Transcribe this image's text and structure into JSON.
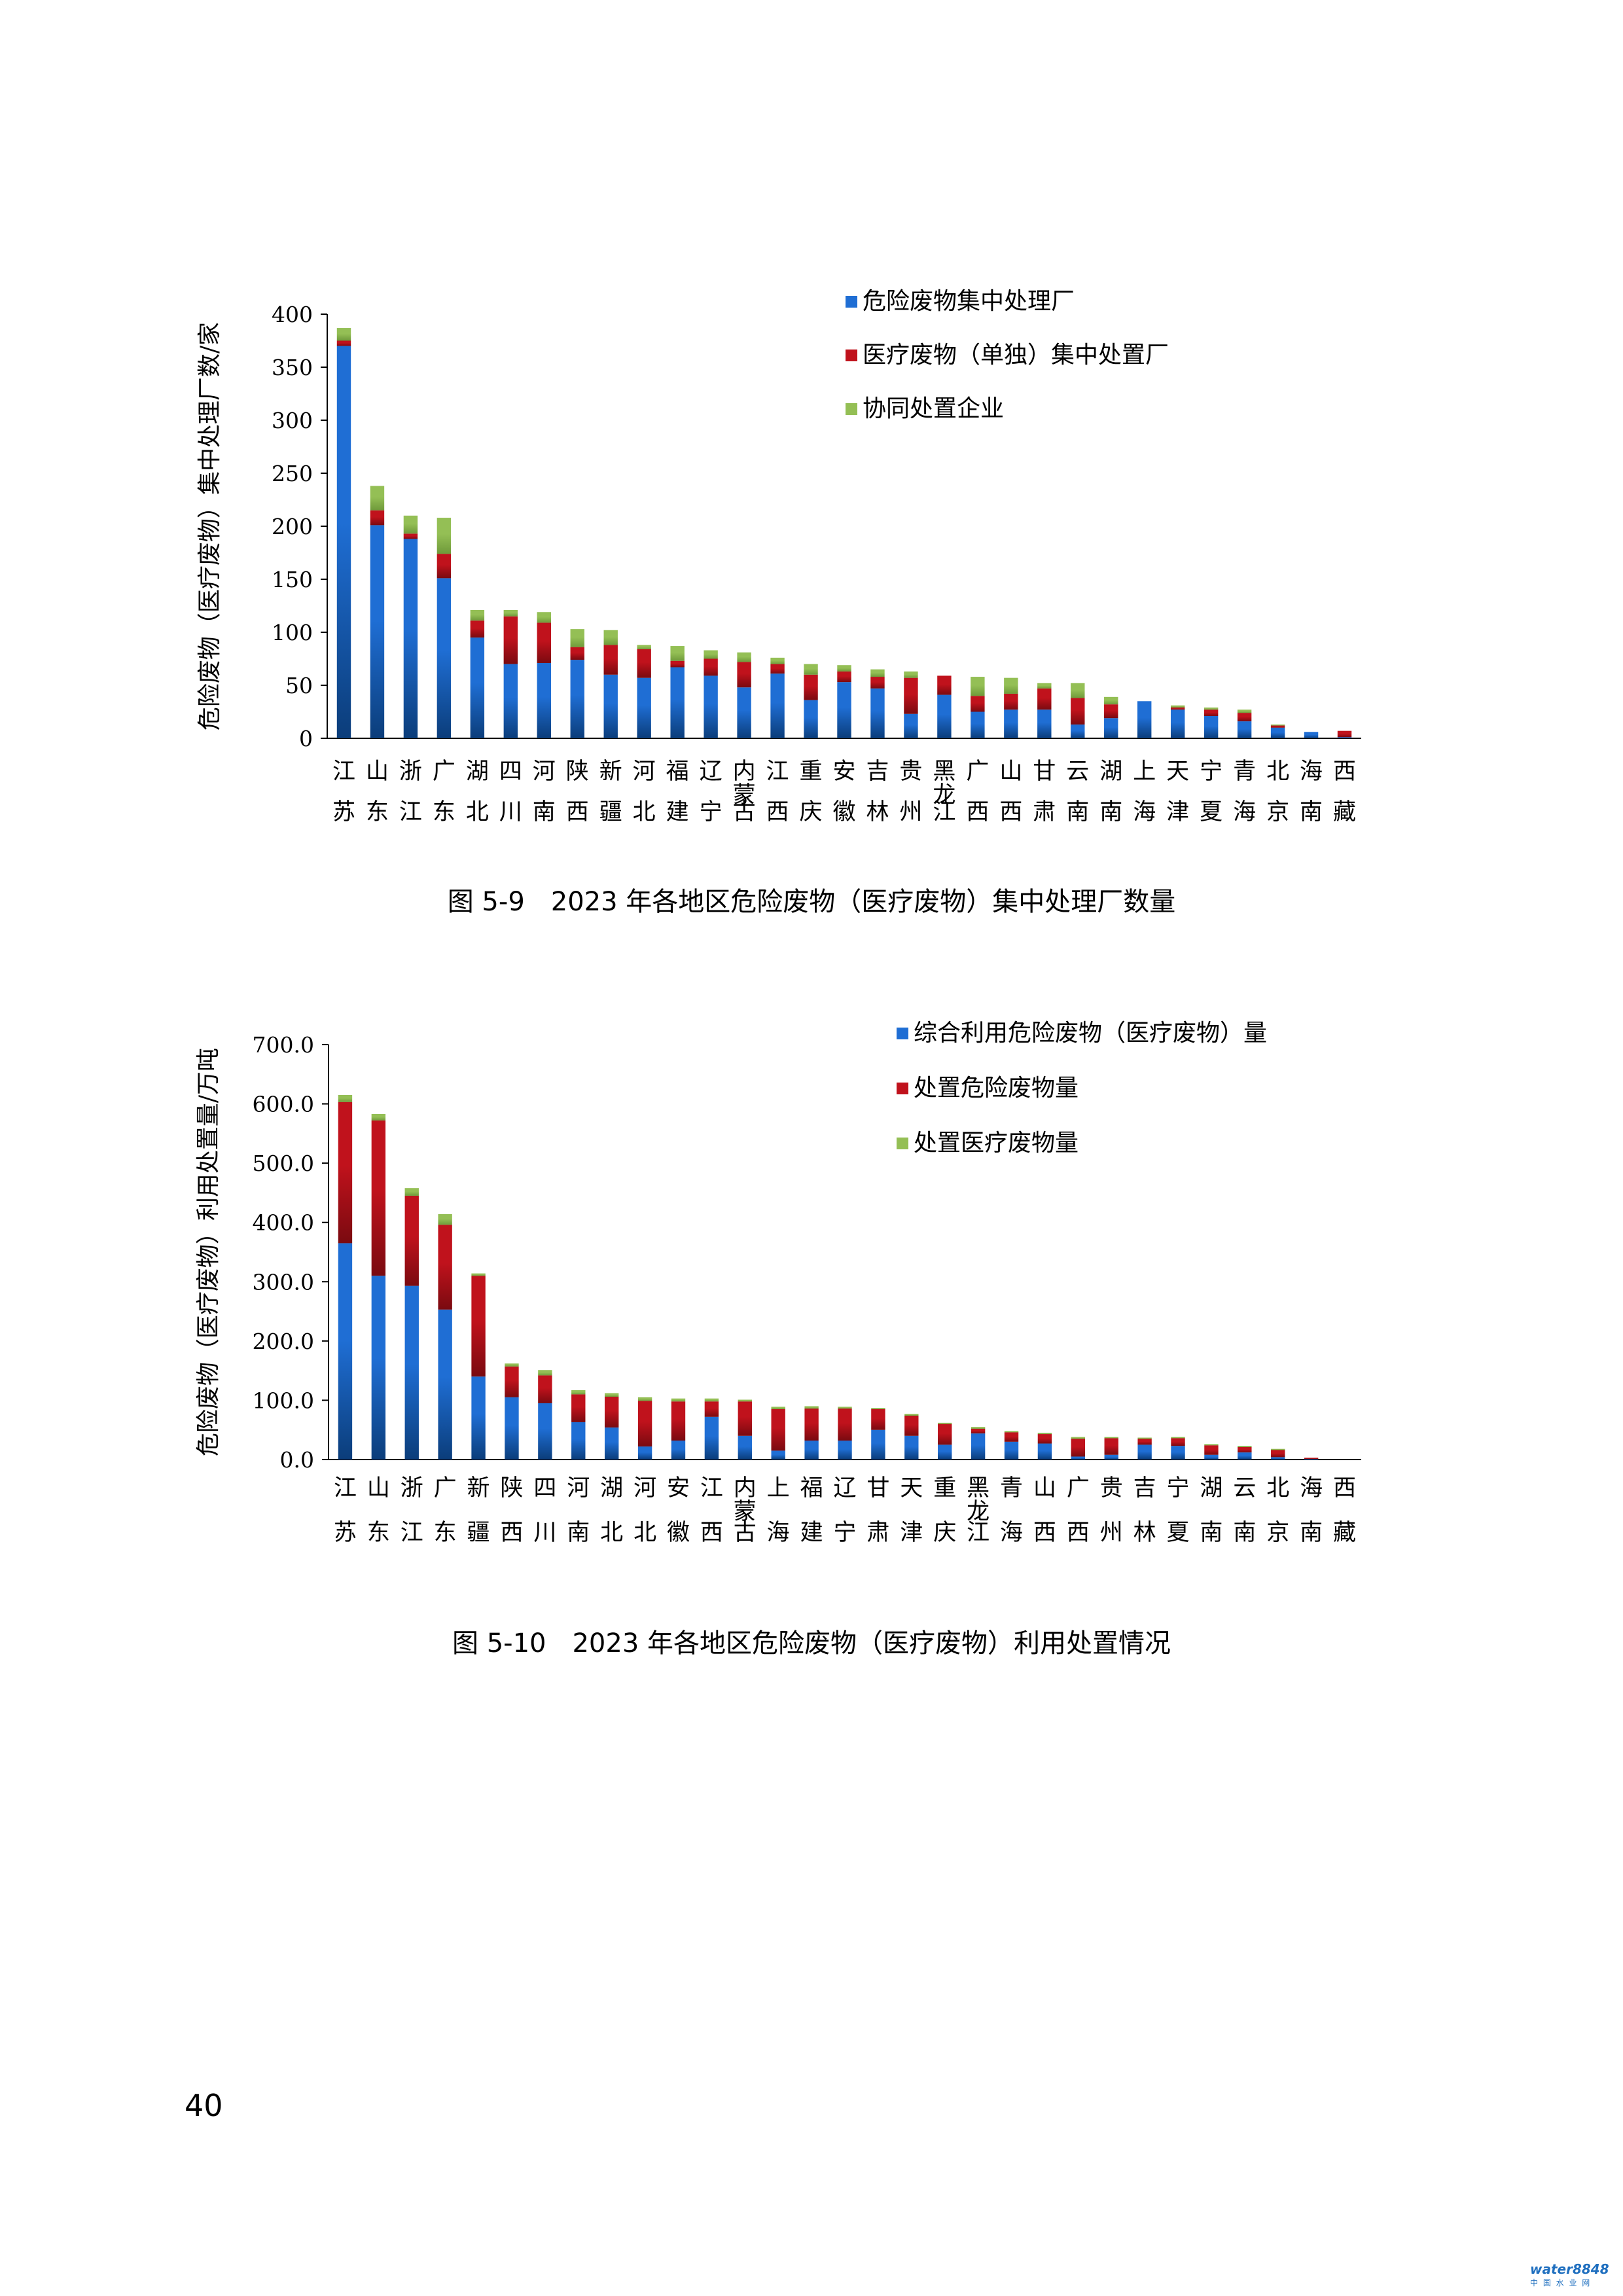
{
  "page": {
    "number": "40",
    "watermark": "water8848",
    "watermark_sub": "中 国 水 业 网"
  },
  "figures": [
    {
      "caption": "图 5-9　2023 年各地区危险废物（医疗废物）集中处理厂数量"
    },
    {
      "caption": "图 5-10　2023 年各地区危险废物（医疗废物）利用处置情况"
    }
  ],
  "chart_data": [
    {
      "type": "bar",
      "stacked": true,
      "title": "",
      "ylabel": "危险废物（医疗废物）集中处理厂数/家",
      "ylim": [
        0,
        400
      ],
      "yticks": [
        "0",
        "50",
        "100",
        "150",
        "200",
        "250",
        "300",
        "350",
        "400"
      ],
      "legend_position": "top-right",
      "categories": [
        "江苏",
        "山东",
        "浙江",
        "广东",
        "湖北",
        "四川",
        "河南",
        "陕西",
        "新疆",
        "河北",
        "福建",
        "辽宁",
        "内蒙古",
        "江西",
        "重庆",
        "安徽",
        "吉林",
        "贵州",
        "黑龙江",
        "广西",
        "山西",
        "甘肃",
        "云南",
        "湖南",
        "上海",
        "天津",
        "宁夏",
        "青海",
        "北京",
        "海南",
        "西藏"
      ],
      "series": [
        {
          "name": "危险废物集中处理厂",
          "color": "#1f6ed4",
          "values": [
            370,
            201,
            188,
            151,
            95,
            70,
            71,
            74,
            60,
            57,
            67,
            59,
            48,
            61,
            36,
            53,
            47,
            23,
            41,
            25,
            27,
            27,
            13,
            19,
            35,
            27,
            21,
            16,
            10,
            6,
            1
          ]
        },
        {
          "name": "医疗废物（单独）集中处置厂",
          "color": "#c0121c",
          "values": [
            5,
            14,
            5,
            23,
            16,
            45,
            38,
            12,
            28,
            27,
            6,
            16,
            24,
            9,
            24,
            10,
            11,
            34,
            18,
            15,
            15,
            20,
            25,
            13,
            0,
            2,
            6,
            8,
            2,
            0,
            6
          ]
        },
        {
          "name": "协同处置企业",
          "color": "#94bf55",
          "values": [
            12,
            23,
            17,
            34,
            10,
            6,
            10,
            17,
            14,
            4,
            14,
            8,
            9,
            6,
            10,
            6,
            7,
            6,
            0,
            18,
            15,
            5,
            14,
            7,
            0,
            2,
            2,
            3,
            1,
            0,
            0
          ]
        }
      ]
    },
    {
      "type": "bar",
      "stacked": true,
      "title": "",
      "ylabel": "危险废物（医疗废物）利用处置量/万吨",
      "ylim": [
        0,
        700
      ],
      "yticks": [
        "0.0",
        "100.0",
        "200.0",
        "300.0",
        "400.0",
        "500.0",
        "600.0",
        "700.0"
      ],
      "legend_position": "top-right",
      "categories": [
        "江苏",
        "山东",
        "浙江",
        "广东",
        "新疆",
        "陕西",
        "四川",
        "河南",
        "湖北",
        "河北",
        "安徽",
        "江西",
        "内蒙古",
        "上海",
        "福建",
        "辽宁",
        "甘肃",
        "天津",
        "重庆",
        "黑龙江",
        "青海",
        "山西",
        "广西",
        "贵州",
        "吉林",
        "宁夏",
        "湖南",
        "云南",
        "北京",
        "海南",
        "西藏"
      ],
      "series": [
        {
          "name": "综合利用危险废物（医疗废物）量",
          "color": "#1f6ed4",
          "values": [
            365,
            310,
            293,
            253,
            140,
            105,
            95,
            63,
            54,
            22,
            32,
            72,
            40,
            15,
            32,
            32,
            50,
            40,
            25,
            44,
            30,
            27,
            5,
            8,
            25,
            23,
            8,
            12,
            4,
            1,
            0
          ]
        },
        {
          "name": "处置危险废物量",
          "color": "#c0121c",
          "values": [
            238,
            262,
            152,
            143,
            170,
            52,
            47,
            47,
            52,
            77,
            66,
            26,
            58,
            70,
            54,
            54,
            35,
            34,
            35,
            8,
            16,
            16,
            30,
            28,
            10,
            13,
            16,
            9,
            12,
            2,
            0
          ]
        },
        {
          "name": "处置医疗废物量",
          "color": "#94bf55",
          "values": [
            12,
            11,
            13,
            18,
            4,
            5,
            9,
            7,
            6,
            6,
            5,
            5,
            3,
            4,
            4,
            3,
            2,
            3,
            2,
            3,
            2,
            2,
            3,
            2,
            2,
            2,
            2,
            2,
            2,
            0,
            0
          ]
        }
      ]
    }
  ]
}
